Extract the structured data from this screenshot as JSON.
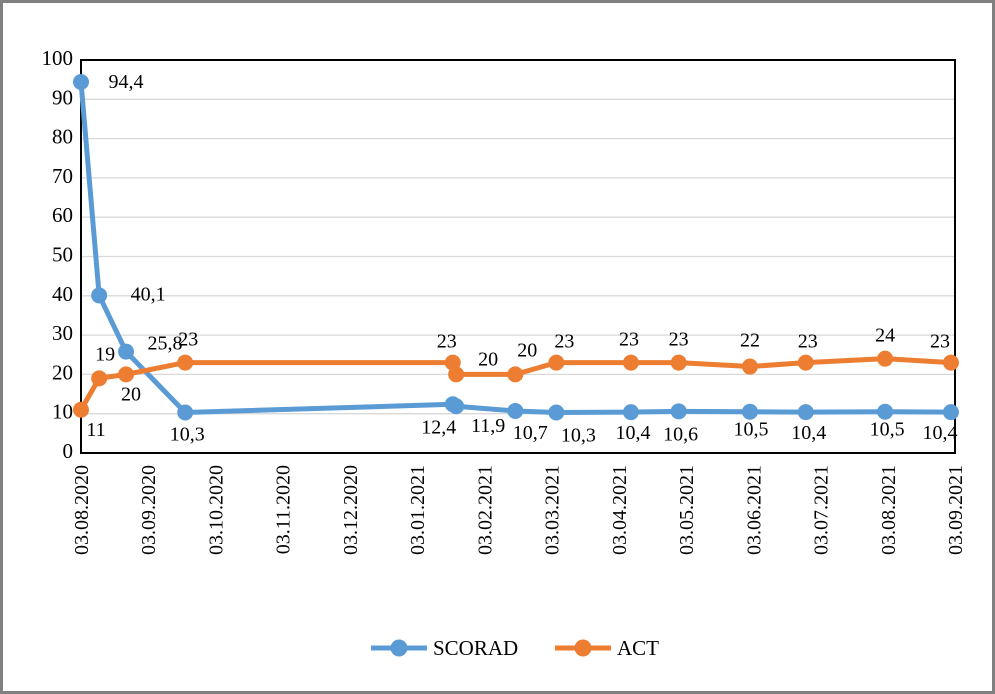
{
  "chart_data": {
    "type": "line",
    "title": "",
    "x_axis": {
      "label": "",
      "tick_labels": [
        "03.08.2020",
        "03.09.2020",
        "03.10.2020",
        "03.11.2020",
        "03.12.2020",
        "03.01.2021",
        "03.02.2021",
        "03.03.2021",
        "03.04.2021",
        "03.05.2021",
        "03.06.2021",
        "03.07.2021",
        "03.08.2021",
        "03.09.2021"
      ],
      "months_span": 13
    },
    "y_axis": {
      "label": "",
      "min": 0,
      "max": 100,
      "step": 10,
      "tick_labels": [
        "0",
        "10",
        "20",
        "30",
        "40",
        "50",
        "60",
        "70",
        "80",
        "90",
        "100"
      ]
    },
    "grid": "horizontal",
    "legend_position": "bottom-center",
    "series": [
      {
        "name": "SCORAD",
        "color": "#5B9BD5",
        "points": [
          {
            "t": 0,
            "v": 94.4,
            "label": "94,4",
            "dx": 45,
            "dy": 0
          },
          {
            "t": 0.27,
            "v": 40.1,
            "label": "40,1",
            "dx": 49,
            "dy": -1
          },
          {
            "t": 0.67,
            "v": 25.8,
            "label": "25,8",
            "dx": 39,
            "dy": -8
          },
          {
            "t": 1.55,
            "v": 10.3,
            "label": "10,3",
            "dx": 2,
            "dy": 22
          },
          {
            "t": 5.53,
            "v": 12.4,
            "label": "12,4",
            "dx": -14,
            "dy": 23
          },
          {
            "t": 5.58,
            "v": 11.9,
            "label": "11,9",
            "dx": 32,
            "dy": 20
          },
          {
            "t": 6.46,
            "v": 10.7,
            "label": "10,7",
            "dx": 15,
            "dy": 22
          },
          {
            "t": 7.07,
            "v": 10.3,
            "label": "10,3",
            "dx": 22,
            "dy": 23
          },
          {
            "t": 8.18,
            "v": 10.4,
            "label": "10,4",
            "dx": 2,
            "dy": 21
          },
          {
            "t": 8.89,
            "v": 10.6,
            "label": "10,6",
            "dx": 2,
            "dy": 23
          },
          {
            "t": 9.95,
            "v": 10.5,
            "label": "10,5",
            "dx": 1,
            "dy": 18
          },
          {
            "t": 10.78,
            "v": 10.4,
            "label": "10,4",
            "dx": 3,
            "dy": 21
          },
          {
            "t": 11.96,
            "v": 10.5,
            "label": "10,5",
            "dx": 2,
            "dy": 18
          },
          {
            "t": 12.94,
            "v": 10.4,
            "label": "10,4",
            "dx": -11,
            "dy": 21
          }
        ]
      },
      {
        "name": "ACT",
        "color": "#ED7D31",
        "points": [
          {
            "t": 0,
            "v": 11,
            "label": "11",
            "dx": 15,
            "dy": 20
          },
          {
            "t": 0.27,
            "v": 19,
            "label": "19",
            "dx": 6,
            "dy": -24
          },
          {
            "t": 0.67,
            "v": 20,
            "label": "20",
            "dx": 5,
            "dy": 20
          },
          {
            "t": 1.55,
            "v": 23,
            "label": "23",
            "dx": 3,
            "dy": -23
          },
          {
            "t": 5.53,
            "v": 23,
            "label": "23",
            "dx": -6,
            "dy": -21
          },
          {
            "t": 5.58,
            "v": 20,
            "label": "20",
            "dx": 32,
            "dy": -15
          },
          {
            "t": 6.46,
            "v": 20,
            "label": "20",
            "dx": 12,
            "dy": -24
          },
          {
            "t": 7.07,
            "v": 23,
            "label": "23",
            "dx": 8,
            "dy": -21
          },
          {
            "t": 8.18,
            "v": 23,
            "label": "23",
            "dx": -2,
            "dy": -23
          },
          {
            "t": 8.89,
            "v": 23,
            "label": "23",
            "dx": 0,
            "dy": -23
          },
          {
            "t": 9.95,
            "v": 22,
            "label": "22",
            "dx": 0,
            "dy": -26
          },
          {
            "t": 10.78,
            "v": 23,
            "label": "23",
            "dx": 2,
            "dy": -21
          },
          {
            "t": 11.96,
            "v": 24,
            "label": "24",
            "dx": 0,
            "dy": -23
          },
          {
            "t": 12.94,
            "v": 23,
            "label": "23",
            "dx": -11,
            "dy": -21
          }
        ]
      }
    ]
  },
  "colors": {
    "grid_line": "#D9D9D9",
    "axis_line": "#000000",
    "outer_frame": "#808080",
    "background": "#FFFFFF",
    "scorad": "#5B9BD5",
    "act": "#ED7D31"
  },
  "legend": {
    "entries": [
      {
        "label": "SCORAD",
        "color": "#5B9BD5"
      },
      {
        "label": "ACT",
        "color": "#ED7D31"
      }
    ]
  }
}
